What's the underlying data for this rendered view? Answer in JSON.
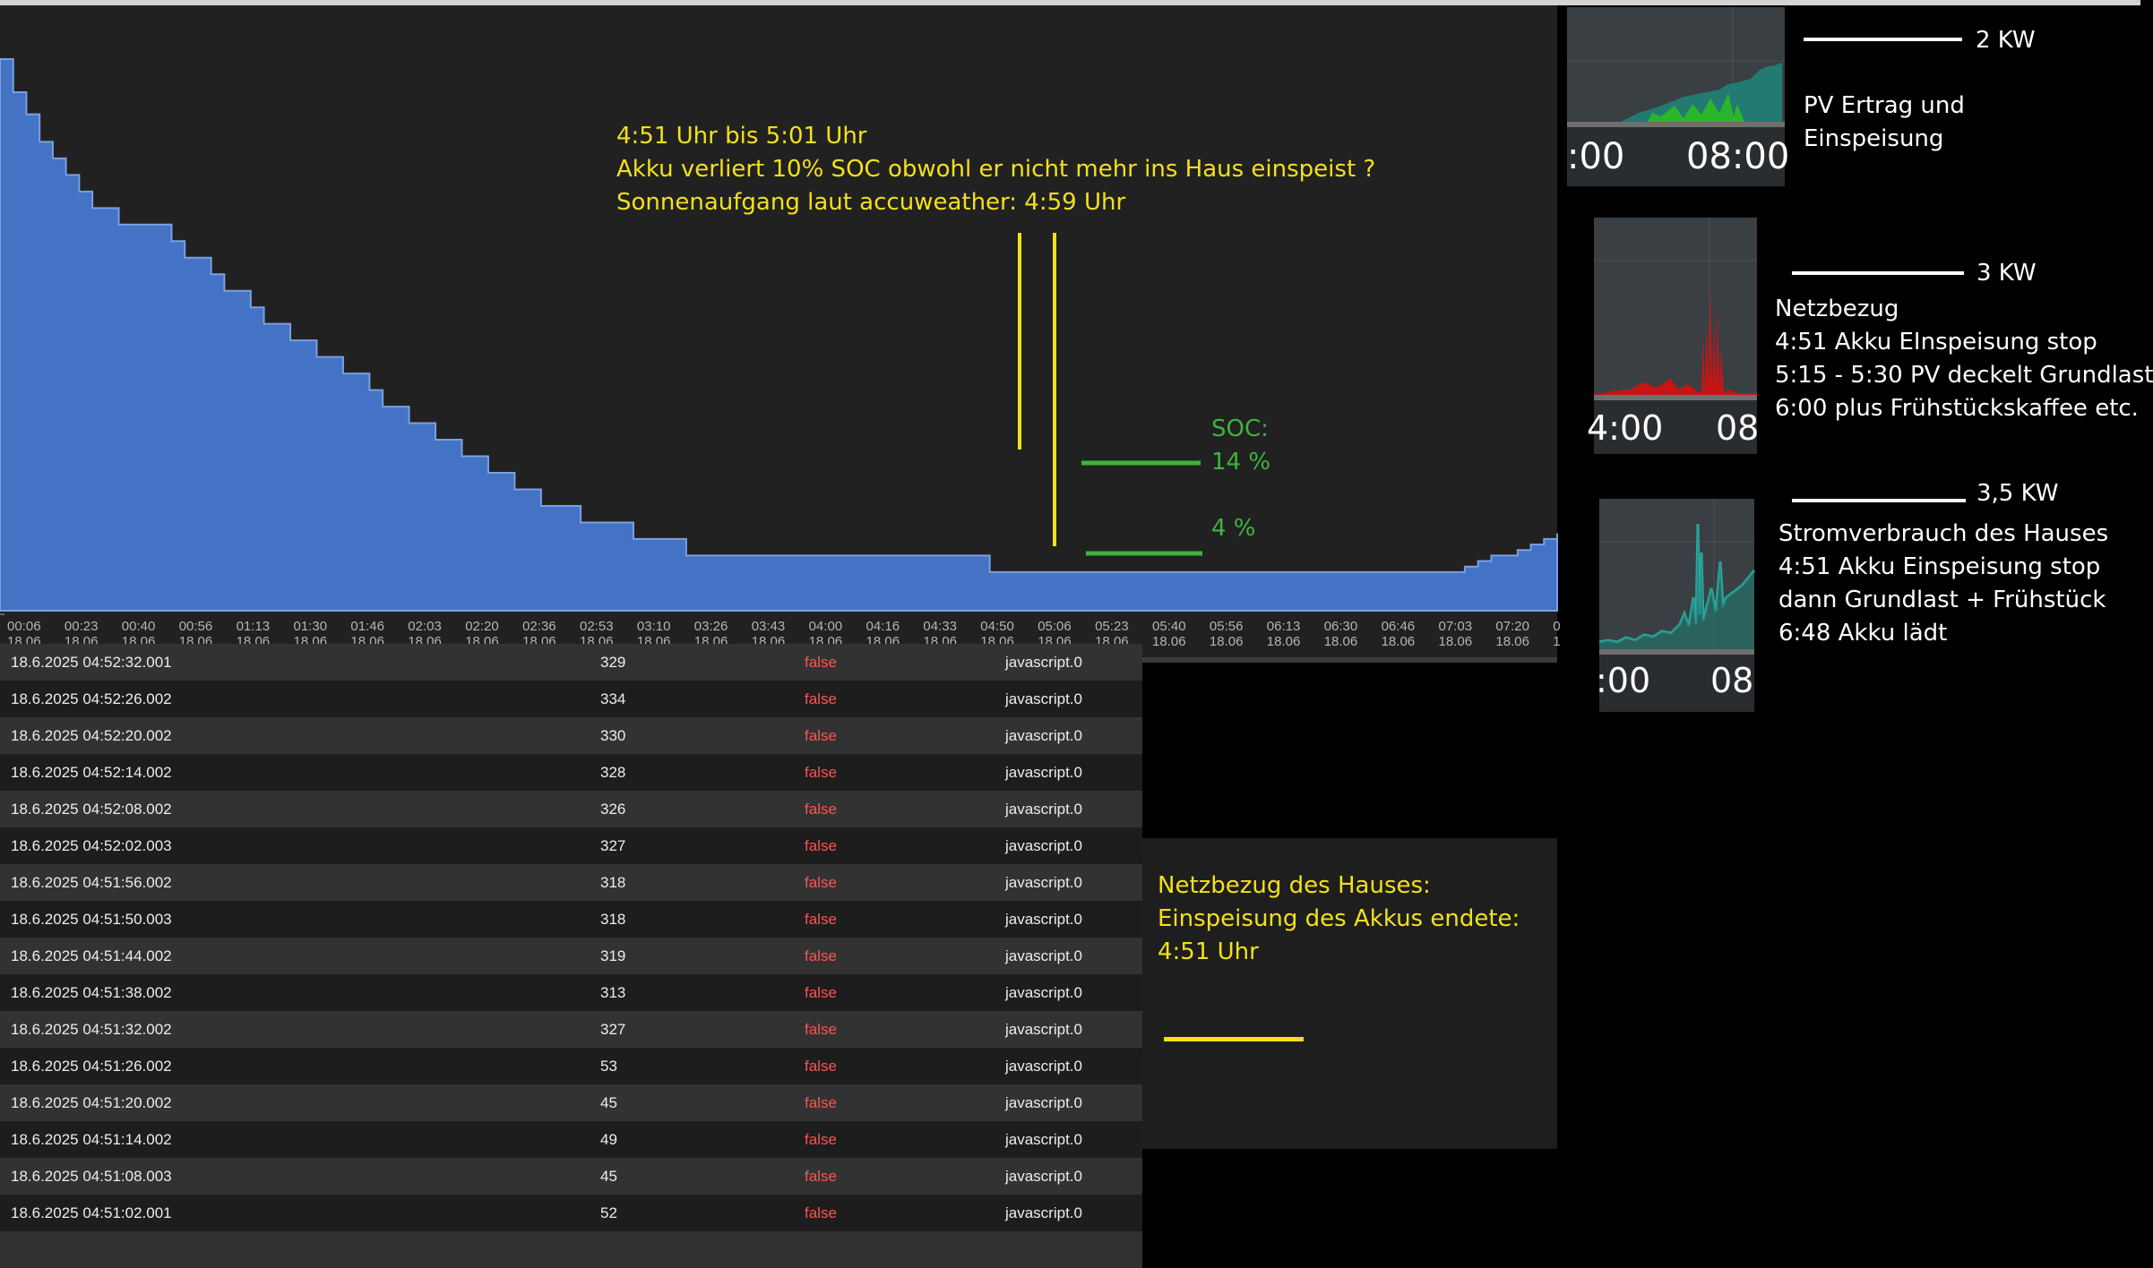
{
  "colors": {
    "soc_fill": "#4472c4",
    "annotation_yellow": "#f2e01c",
    "soc_green": "#3db33d",
    "ack_false": "#ff5252",
    "pv_green": "#2bb52b",
    "grid_red": "#c81414",
    "house_teal": "#2aa7a0"
  },
  "soc_chart": {
    "x_ticks": [
      {
        "time": "00:06",
        "date": "18.06"
      },
      {
        "time": "00:23",
        "date": "18.06"
      },
      {
        "time": "00:40",
        "date": "18.06"
      },
      {
        "time": "00:56",
        "date": "18.06"
      },
      {
        "time": "01:13",
        "date": "18.06"
      },
      {
        "time": "01:30",
        "date": "18.06"
      },
      {
        "time": "01:46",
        "date": "18.06"
      },
      {
        "time": "02:03",
        "date": "18.06"
      },
      {
        "time": "02:20",
        "date": "18.06"
      },
      {
        "time": "02:36",
        "date": "18.06"
      },
      {
        "time": "02:53",
        "date": "18.06"
      },
      {
        "time": "03:10",
        "date": "18.06"
      },
      {
        "time": "03:26",
        "date": "18.06"
      },
      {
        "time": "03:43",
        "date": "18.06"
      },
      {
        "time": "04:00",
        "date": "18.06"
      },
      {
        "time": "04:16",
        "date": "18.06"
      },
      {
        "time": "04:33",
        "date": "18.06"
      },
      {
        "time": "04:50",
        "date": "18.06"
      },
      {
        "time": "05:06",
        "date": "18.06"
      },
      {
        "time": "05:23",
        "date": "18.06"
      },
      {
        "time": "05:40",
        "date": "18.06"
      },
      {
        "time": "05:56",
        "date": "18.06"
      },
      {
        "time": "06:13",
        "date": "18.06"
      },
      {
        "time": "06:30",
        "date": "18.06"
      },
      {
        "time": "06:46",
        "date": "18.06"
      },
      {
        "time": "07:03",
        "date": "18.06"
      },
      {
        "time": "07:20",
        "date": "18.06"
      },
      {
        "time": "0",
        "date": "1"
      }
    ],
    "annotation": [
      "4:51 Uhr bis 5:01 Uhr",
      "Akku verliert 10% SOC obwohl er nicht mehr ins Haus einspeist ?",
      "Sonnenaufgang laut accuweather: 4:59 Uhr"
    ],
    "soc_label": "SOC:",
    "soc_high": "14 %",
    "soc_low": "4 %"
  },
  "chart_data": {
    "type": "area",
    "series": [
      {
        "values": [
          [
            0,
            100
          ],
          [
            14,
            94
          ],
          [
            28,
            90
          ],
          [
            42,
            85
          ],
          [
            56,
            82
          ],
          [
            70,
            79
          ],
          [
            84,
            76
          ],
          [
            98,
            73
          ],
          [
            112,
            73
          ],
          [
            126,
            70
          ],
          [
            140,
            70
          ],
          [
            154,
            70
          ],
          [
            168,
            70
          ],
          [
            182,
            67
          ],
          [
            196,
            64
          ],
          [
            210,
            64
          ],
          [
            224,
            61
          ],
          [
            238,
            58
          ],
          [
            252,
            58
          ],
          [
            266,
            55
          ],
          [
            280,
            52
          ],
          [
            294,
            52
          ],
          [
            308,
            49
          ],
          [
            322,
            49
          ],
          [
            336,
            46
          ],
          [
            350,
            46
          ],
          [
            364,
            43
          ],
          [
            378,
            43
          ],
          [
            392,
            40
          ],
          [
            406,
            37
          ],
          [
            420,
            37
          ],
          [
            434,
            34
          ],
          [
            448,
            34
          ],
          [
            462,
            31
          ],
          [
            476,
            31
          ],
          [
            490,
            28
          ],
          [
            504,
            28
          ],
          [
            518,
            25
          ],
          [
            532,
            25
          ],
          [
            546,
            22
          ],
          [
            560,
            22
          ],
          [
            574,
            19
          ],
          [
            588,
            19
          ],
          [
            602,
            19
          ],
          [
            616,
            16
          ],
          [
            630,
            16
          ],
          [
            644,
            16
          ],
          [
            658,
            16
          ],
          [
            672,
            13
          ],
          [
            686,
            13
          ],
          [
            700,
            13
          ],
          [
            714,
            13
          ],
          [
            728,
            10
          ],
          [
            742,
            10
          ],
          [
            756,
            10
          ],
          [
            770,
            10
          ],
          [
            784,
            10
          ],
          [
            798,
            10
          ],
          [
            812,
            10
          ],
          [
            826,
            10
          ],
          [
            840,
            10
          ],
          [
            854,
            10
          ],
          [
            868,
            10
          ],
          [
            882,
            10
          ],
          [
            896,
            10
          ],
          [
            910,
            10
          ],
          [
            924,
            10
          ],
          [
            938,
            10
          ],
          [
            952,
            10
          ],
          [
            966,
            10
          ],
          [
            980,
            10
          ],
          [
            994,
            10
          ],
          [
            1008,
            10
          ],
          [
            1022,
            10
          ],
          [
            1036,
            10
          ],
          [
            1050,
            7
          ],
          [
            1064,
            7
          ],
          [
            1078,
            7
          ],
          [
            1092,
            7
          ],
          [
            1106,
            7
          ],
          [
            1120,
            7
          ],
          [
            1134,
            7
          ],
          [
            1148,
            7
          ],
          [
            1162,
            7
          ],
          [
            1176,
            7
          ],
          [
            1190,
            7
          ],
          [
            1204,
            7
          ],
          [
            1218,
            7
          ],
          [
            1232,
            7
          ],
          [
            1246,
            7
          ],
          [
            1260,
            7
          ],
          [
            1274,
            7
          ],
          [
            1288,
            7
          ],
          [
            1302,
            7
          ],
          [
            1316,
            7
          ],
          [
            1330,
            7
          ],
          [
            1344,
            7
          ],
          [
            1358,
            7
          ],
          [
            1372,
            7
          ],
          [
            1386,
            7
          ],
          [
            1400,
            7
          ],
          [
            1414,
            7
          ],
          [
            1428,
            7
          ],
          [
            1442,
            7
          ],
          [
            1456,
            7
          ],
          [
            1470,
            7
          ],
          [
            1484,
            7
          ],
          [
            1498,
            7
          ],
          [
            1512,
            7
          ],
          [
            1526,
            7
          ],
          [
            1540,
            7
          ],
          [
            1554,
            8
          ],
          [
            1568,
            9
          ],
          [
            1582,
            10
          ],
          [
            1596,
            10
          ],
          [
            1610,
            11
          ],
          [
            1624,
            12
          ],
          [
            1638,
            13
          ],
          [
            1652,
            14
          ]
        ]
      }
    ],
    "x_range": [
      "00:00",
      "07:36"
    ],
    "ylim": [
      0,
      100
    ]
  },
  "log_rows": [
    {
      "ts": "18.6.2025 04:52:32.001",
      "val": "329",
      "ack": "false",
      "from": "javascript.0"
    },
    {
      "ts": "18.6.2025 04:52:26.002",
      "val": "334",
      "ack": "false",
      "from": "javascript.0"
    },
    {
      "ts": "18.6.2025 04:52:20.002",
      "val": "330",
      "ack": "false",
      "from": "javascript.0"
    },
    {
      "ts": "18.6.2025 04:52:14.002",
      "val": "328",
      "ack": "false",
      "from": "javascript.0"
    },
    {
      "ts": "18.6.2025 04:52:08.002",
      "val": "326",
      "ack": "false",
      "from": "javascript.0"
    },
    {
      "ts": "18.6.2025 04:52:02.003",
      "val": "327",
      "ack": "false",
      "from": "javascript.0"
    },
    {
      "ts": "18.6.2025 04:51:56.002",
      "val": "318",
      "ack": "false",
      "from": "javascript.0"
    },
    {
      "ts": "18.6.2025 04:51:50.003",
      "val": "318",
      "ack": "false",
      "from": "javascript.0"
    },
    {
      "ts": "18.6.2025 04:51:44.002",
      "val": "319",
      "ack": "false",
      "from": "javascript.0"
    },
    {
      "ts": "18.6.2025 04:51:38.002",
      "val": "313",
      "ack": "false",
      "from": "javascript.0"
    },
    {
      "ts": "18.6.2025 04:51:32.002",
      "val": "327",
      "ack": "false",
      "from": "javascript.0"
    },
    {
      "ts": "18.6.2025 04:51:26.002",
      "val": "53",
      "ack": "false",
      "from": "javascript.0"
    },
    {
      "ts": "18.6.2025 04:51:20.002",
      "val": "45",
      "ack": "false",
      "from": "javascript.0"
    },
    {
      "ts": "18.6.2025 04:51:14.002",
      "val": "49",
      "ack": "false",
      "from": "javascript.0"
    },
    {
      "ts": "18.6.2025 04:51:08.003",
      "val": "45",
      "ack": "false",
      "from": "javascript.0"
    },
    {
      "ts": "18.6.2025 04:51:02.001",
      "val": "52",
      "ack": "false",
      "from": "javascript.0"
    }
  ],
  "netz_box": [
    "Netzbezug des Hauses:",
    "Einspeisung des Akkus endete:",
    "4:51 Uhr"
  ],
  "thumb_pv": {
    "tick_left": ":00",
    "tick_right": "08:00",
    "scale": "2 KW",
    "text": [
      "PV Ertrag und",
      "Einspeisung"
    ]
  },
  "thumb_grid": {
    "tick_left": "4:00",
    "tick_right": "08",
    "scale": "3 KW",
    "text": [
      "Netzbezug",
      "4:51 Akku EInspeisung stop",
      "5:15 - 5:30 PV deckelt Grundlast",
      "6:00 plus Frühstückskaffee etc."
    ]
  },
  "thumb_house": {
    "tick_left": ":00",
    "tick_right": "08",
    "scale": "3,5 KW",
    "text": [
      "Stromverbrauch des Hauses",
      "4:51 Akku Einspeisung stop",
      "dann Grundlast + Frühstück",
      "6:48 Akku lädt"
    ]
  }
}
